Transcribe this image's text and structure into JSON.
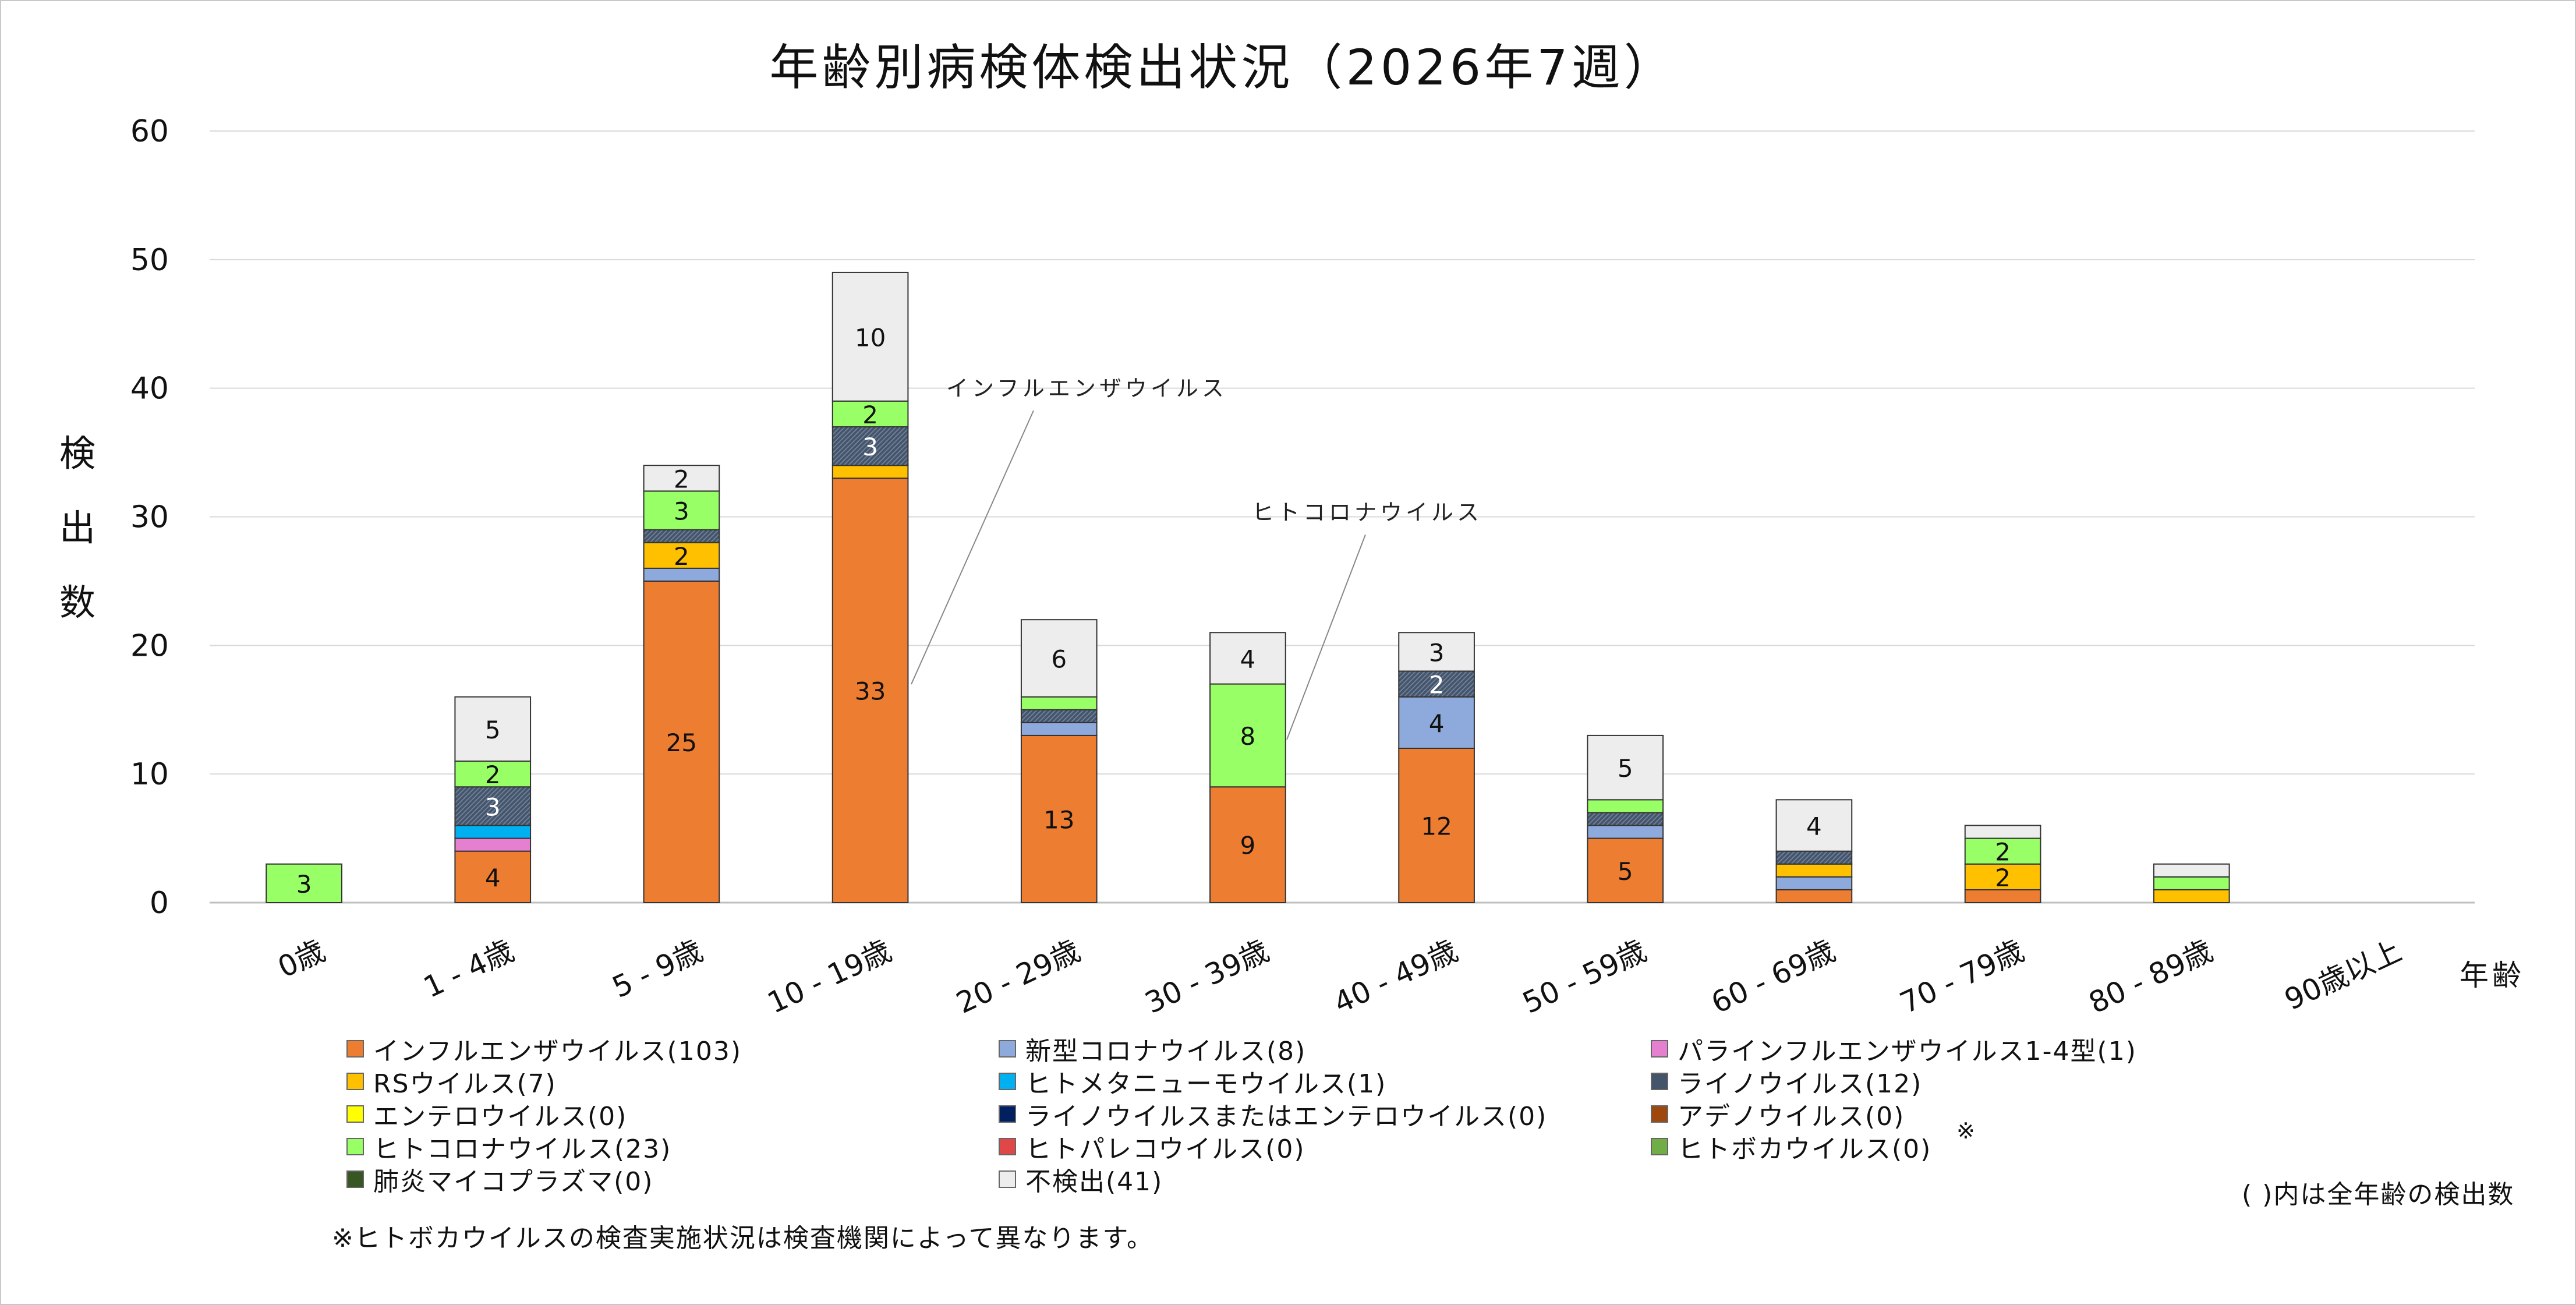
{
  "chart_data": {
    "type": "bar",
    "stacked": true,
    "title": "年齢別病検体検出状況（2026年7週）",
    "ylabel": "検出数",
    "xlabel": "年齢",
    "ylim": [
      0,
      60
    ],
    "yticks": [
      0,
      10,
      20,
      30,
      40,
      50,
      60
    ],
    "grid": true,
    "legend_position": "bottom",
    "categories": [
      "0歳",
      "1 - 4歳",
      "5 - 9歳",
      "10 - 19歳",
      "20 - 29歳",
      "30 - 39歳",
      "40 - 49歳",
      "50 - 59歳",
      "60 - 69歳",
      "70 - 79歳",
      "80 - 89歳",
      "90歳以上"
    ],
    "series": [
      {
        "name": "インフルエンザウイルス",
        "total": "103",
        "color": "#ED7D31",
        "values": [
          0,
          4,
          25,
          33,
          13,
          9,
          12,
          5,
          1,
          1,
          0,
          0
        ],
        "labels": [
          null,
          "4",
          "25",
          "33",
          "13",
          "9",
          "12",
          "5",
          null,
          null,
          null,
          null
        ]
      },
      {
        "name": "新型コロナウイルス",
        "total": "8",
        "color": "#8EA9DB",
        "values": [
          0,
          0,
          1,
          0,
          1,
          0,
          4,
          1,
          1,
          0,
          0,
          0
        ],
        "labels": [
          null,
          null,
          null,
          null,
          null,
          null,
          "4",
          null,
          null,
          null,
          null,
          null
        ]
      },
      {
        "name": "パラインフルエンザウイルス1-4型",
        "total": "1",
        "color": "#E580D0",
        "values": [
          0,
          1,
          0,
          0,
          0,
          0,
          0,
          0,
          0,
          0,
          0,
          0
        ],
        "labels": [
          null,
          null,
          null,
          null,
          null,
          null,
          null,
          null,
          null,
          null,
          null,
          null
        ]
      },
      {
        "name": "RSウイルス",
        "total": "7",
        "color": "#FFC000",
        "values": [
          0,
          0,
          2,
          1,
          0,
          0,
          0,
          0,
          1,
          2,
          1,
          0
        ],
        "labels": [
          null,
          null,
          "2",
          null,
          null,
          null,
          null,
          null,
          null,
          "2",
          null,
          null
        ]
      },
      {
        "name": "ヒトメタニューモウイルス",
        "total": "1",
        "color": "#00B0F0",
        "values": [
          0,
          1,
          0,
          0,
          0,
          0,
          0,
          0,
          0,
          0,
          0,
          0
        ],
        "labels": [
          null,
          null,
          null,
          null,
          null,
          null,
          null,
          null,
          null,
          null,
          null,
          null
        ]
      },
      {
        "name": "ライノウイルス",
        "total": "12",
        "color": "#44546A",
        "values": [
          0,
          3,
          1,
          3,
          1,
          0,
          2,
          1,
          1,
          0,
          0,
          0
        ],
        "labels": [
          null,
          "3",
          null,
          "3",
          null,
          null,
          "2",
          null,
          null,
          null,
          null,
          null
        ]
      },
      {
        "name": "エンテロウイルス",
        "total": "0",
        "color": "#FFFF00",
        "values": [
          0,
          0,
          0,
          0,
          0,
          0,
          0,
          0,
          0,
          0,
          0,
          0
        ],
        "labels": [
          null,
          null,
          null,
          null,
          null,
          null,
          null,
          null,
          null,
          null,
          null,
          null
        ]
      },
      {
        "name": "ライノウイルスまたはエンテロウイルス",
        "total": "0",
        "color": "#002060",
        "values": [
          0,
          0,
          0,
          0,
          0,
          0,
          0,
          0,
          0,
          0,
          0,
          0
        ],
        "labels": [
          null,
          null,
          null,
          null,
          null,
          null,
          null,
          null,
          null,
          null,
          null,
          null
        ]
      },
      {
        "name": "アデノウイルス",
        "total": "0",
        "color": "#9E480E",
        "values": [
          0,
          0,
          0,
          0,
          0,
          0,
          0,
          0,
          0,
          0,
          0,
          0
        ],
        "labels": [
          null,
          null,
          null,
          null,
          null,
          null,
          null,
          null,
          null,
          null,
          null,
          null
        ]
      },
      {
        "name": "ヒトコロナウイルス",
        "total": "23",
        "color": "#99FF66",
        "values": [
          3,
          2,
          3,
          2,
          1,
          8,
          0,
          1,
          0,
          2,
          1,
          0
        ],
        "labels": [
          "3",
          "2",
          "3",
          "2",
          null,
          "8",
          null,
          null,
          null,
          "2",
          null,
          null
        ]
      },
      {
        "name": "ヒトパレコウイルス",
        "total": "0",
        "color": "#E04848",
        "values": [
          0,
          0,
          0,
          0,
          0,
          0,
          0,
          0,
          0,
          0,
          0,
          0
        ],
        "labels": [
          null,
          null,
          null,
          null,
          null,
          null,
          null,
          null,
          null,
          null,
          null,
          null
        ]
      },
      {
        "name": "ヒトボカウイルス",
        "total": "0",
        "color": "#70AD47",
        "values": [
          0,
          0,
          0,
          0,
          0,
          0,
          0,
          0,
          0,
          0,
          0,
          0
        ],
        "labels": [
          null,
          null,
          null,
          null,
          null,
          null,
          null,
          null,
          null,
          null,
          null,
          null
        ]
      },
      {
        "name": "肺炎マイコプラズマ",
        "total": "0",
        "color": "#375623",
        "values": [
          0,
          0,
          0,
          0,
          0,
          0,
          0,
          0,
          0,
          0,
          0,
          0
        ],
        "labels": [
          null,
          null,
          null,
          null,
          null,
          null,
          null,
          null,
          null,
          null,
          null,
          null
        ]
      },
      {
        "name": "不検出",
        "total": "41",
        "color": "#EDEDED",
        "values": [
          0,
          5,
          2,
          10,
          6,
          4,
          3,
          5,
          4,
          1,
          1,
          0
        ],
        "labels": [
          null,
          "5",
          "2",
          "10",
          "6",
          "4",
          "3",
          "5",
          "4",
          null,
          null,
          null
        ]
      }
    ],
    "annotations": [
      {
        "text": "インフルエンザウイルス",
        "category_index": 3
      },
      {
        "text": "ヒトコロナウイルス",
        "category_index": 5
      }
    ],
    "legend_mark": "※",
    "total_note": "( )内は全年齢の検出数",
    "footnote": "※ヒトボカウイルスの検査実施状況は検査機関によって異なります。"
  }
}
